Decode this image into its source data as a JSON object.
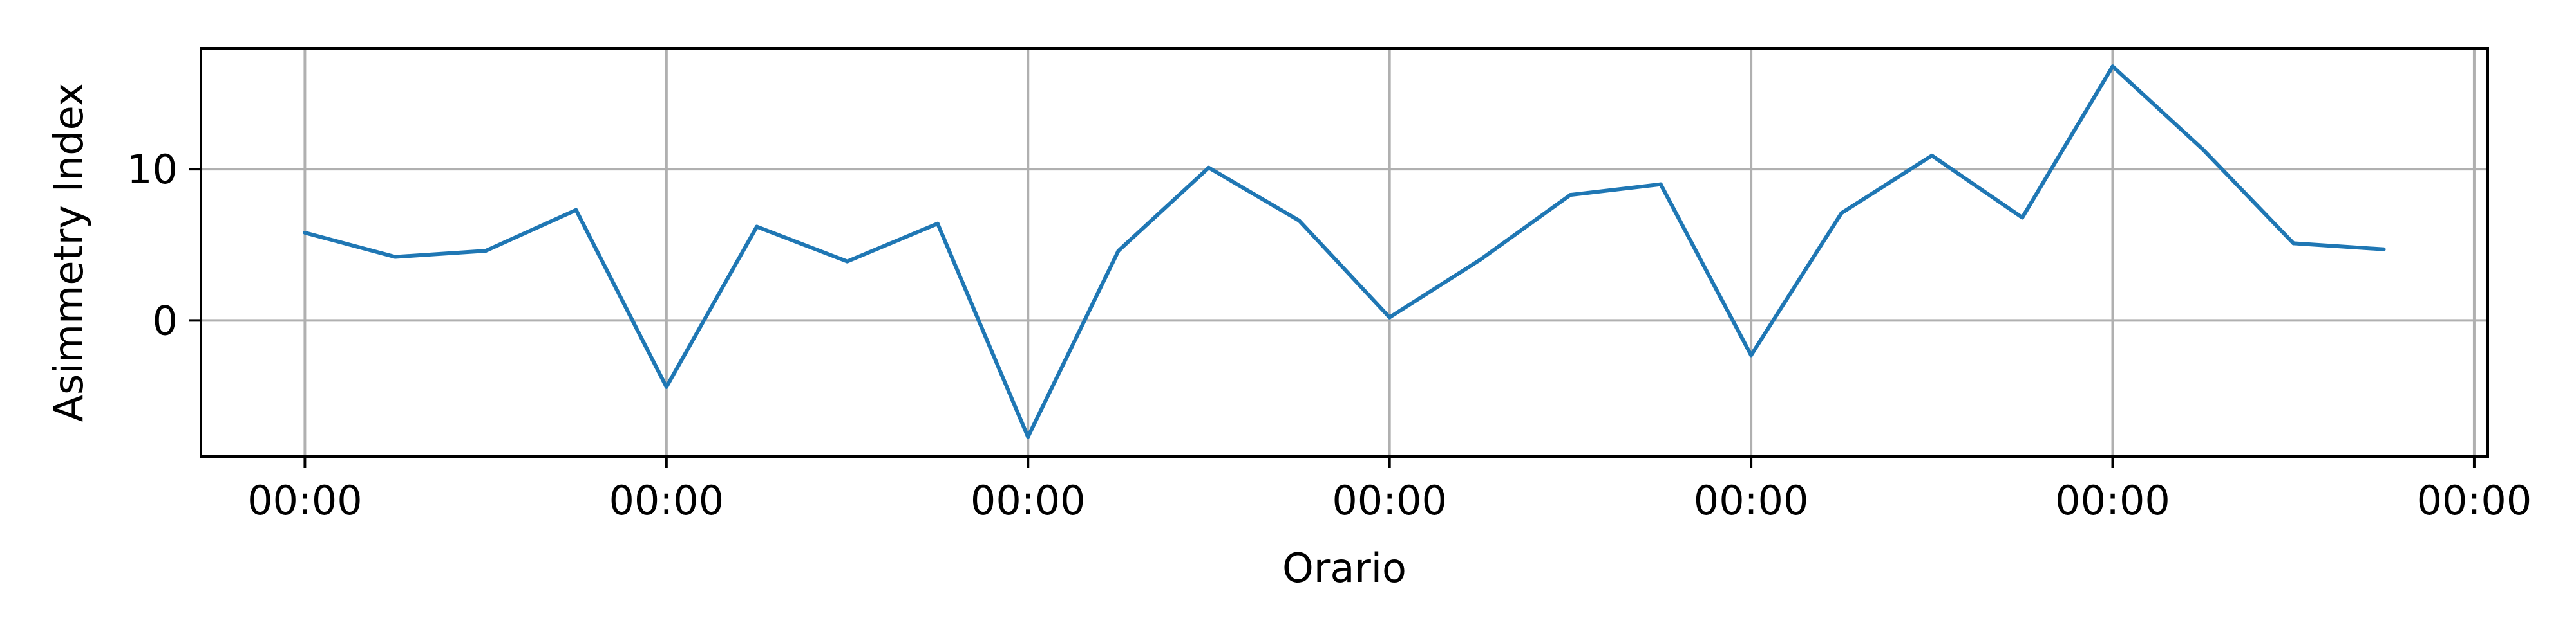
{
  "chart_data": {
    "type": "line",
    "xlabel": "Orario",
    "ylabel": "Asimmetry Index",
    "x": [
      0,
      1,
      2,
      3,
      4,
      5,
      6,
      7,
      8,
      9,
      10,
      11,
      12,
      13,
      14,
      15,
      16,
      17,
      18,
      19,
      20,
      21,
      22,
      23
    ],
    "xlim": [
      -1.15,
      24.15
    ],
    "ylim": [
      -9,
      18
    ],
    "x_ticks": [
      0,
      4,
      8,
      12,
      16,
      20,
      24
    ],
    "x_tick_labels": [
      "00:00",
      "00:00",
      "00:00",
      "00:00",
      "00:00",
      "00:00",
      "00:00"
    ],
    "y_ticks": [
      0,
      10
    ],
    "y_tick_labels": [
      "0",
      "10"
    ],
    "grid": true,
    "series": [
      {
        "color": "#1f77b4",
        "values": [
          5.8,
          4.2,
          4.6,
          7.3,
          -4.4,
          6.2,
          3.9,
          6.4,
          -7.7,
          4.6,
          10.1,
          6.6,
          0.2,
          4.0,
          8.3,
          9.0,
          -2.3,
          7.1,
          10.9,
          6.8,
          16.8,
          11.3,
          5.1,
          4.7
        ]
      }
    ],
    "colors": {
      "grid": "#b0b0b0",
      "axes": "#000000",
      "background": "#ffffff"
    }
  }
}
